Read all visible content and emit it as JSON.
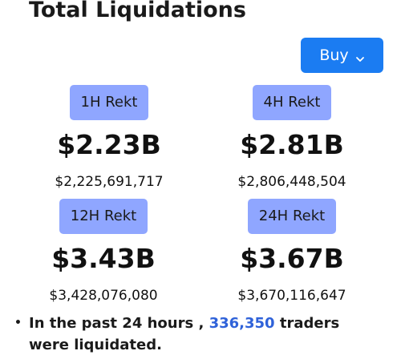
{
  "header": {
    "title": "Total Liquidations"
  },
  "toolbar": {
    "buy_label": "Buy"
  },
  "stats": [
    {
      "label": "1H Rekt",
      "short": "$2.23B",
      "exact": "$2,225,691,717"
    },
    {
      "label": "4H Rekt",
      "short": "$2.81B",
      "exact": "$2,806,448,504"
    },
    {
      "label": "12H Rekt",
      "short": "$3.43B",
      "exact": "$3,428,076,080"
    },
    {
      "label": "24H Rekt",
      "short": "$3.67B",
      "exact": "$3,670,116,647"
    }
  ],
  "summary": {
    "bullet": "•",
    "prefix": "In the past 24 hours ,",
    "count": "336,350",
    "suffix": "traders were liquidated."
  },
  "colors": {
    "accent": "#1b7cf2",
    "badge": "#8fa6ff",
    "highlight": "#2f62d9"
  },
  "icons": {
    "buy_dropdown": "chevron-down-icon"
  }
}
